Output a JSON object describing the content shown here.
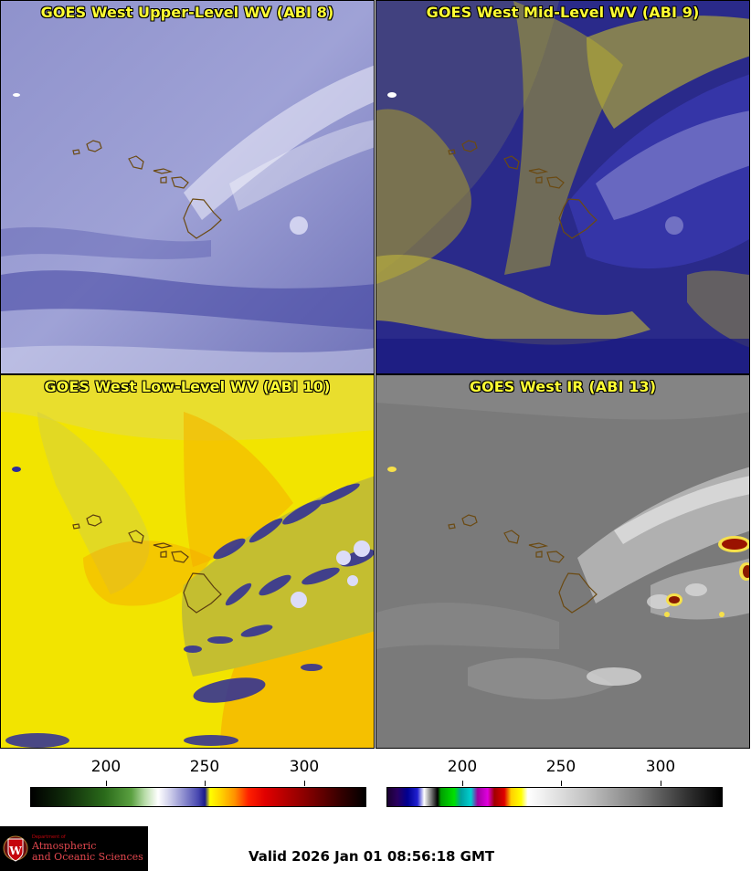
{
  "panels": {
    "upper_wv": {
      "title": "GOES West Upper-Level WV (ABI 8)"
    },
    "mid_wv": {
      "title": "GOES West Mid-Level WV (ABI 9)"
    },
    "low_wv": {
      "title": "GOES West Low-Level WV (ABI 10)"
    },
    "ir": {
      "title": "GOES West IR (ABI 13)"
    }
  },
  "colorbars": {
    "wv": {
      "ticks": [
        "200",
        "250",
        "300"
      ]
    },
    "ir": {
      "ticks": [
        "200",
        "250",
        "300"
      ]
    }
  },
  "logo": {
    "department": "Department of",
    "name_line1": "Atmospheric",
    "name_line2": "and Oceanic Sciences"
  },
  "valid_time": "Valid 2026 Jan 01 08:56:18 GMT",
  "colors": {
    "title_text": "#ffff33",
    "coastline": "#6b4a12",
    "logo_red": "#c5050c"
  }
}
